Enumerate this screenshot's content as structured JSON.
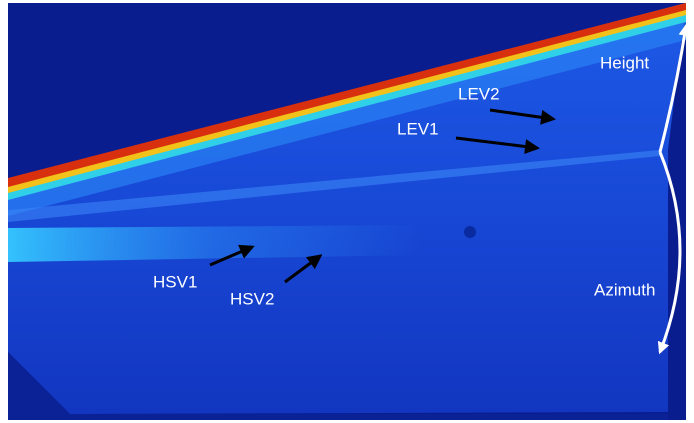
{
  "labels": [
    "LEV2",
    "LEV1",
    "HSV1",
    "HSV2",
    "Height",
    "Azimuth"
  ]
}
